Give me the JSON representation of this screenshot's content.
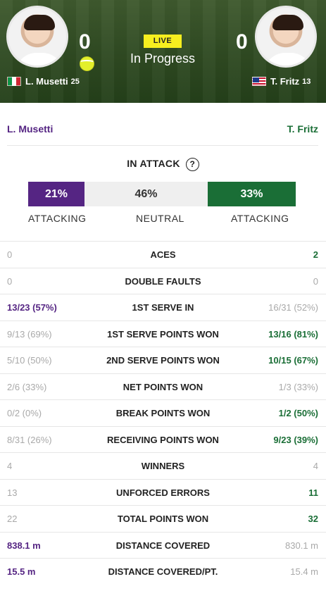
{
  "header": {
    "left_player": {
      "score": "0",
      "name": "L. Musetti",
      "seed": "25"
    },
    "right_player": {
      "score": "0",
      "name": "T. Fritz",
      "seed": "13"
    },
    "live_label": "LIVE",
    "status": "In Progress"
  },
  "names_row": {
    "left": "L. Musetti",
    "right": "T. Fritz"
  },
  "attack": {
    "title": "IN ATTACK",
    "help": "?",
    "left_pct": "21%",
    "neutral_pct": "46%",
    "right_pct": "33%",
    "left_label": "ATTACKING",
    "neutral_label": "NEUTRAL",
    "right_label": "ATTACKING"
  },
  "stats": [
    {
      "label": "ACES",
      "left": "0",
      "right": "2",
      "leader": "right"
    },
    {
      "label": "DOUBLE FAULTS",
      "left": "0",
      "right": "0",
      "leader": "none"
    },
    {
      "label": "1ST SERVE IN",
      "left": "13/23 (57%)",
      "right": "16/31 (52%)",
      "leader": "left"
    },
    {
      "label": "1ST SERVE POINTS WON",
      "left": "9/13 (69%)",
      "right": "13/16 (81%)",
      "leader": "right"
    },
    {
      "label": "2ND SERVE POINTS WON",
      "left": "5/10 (50%)",
      "right": "10/15 (67%)",
      "leader": "right"
    },
    {
      "label": "NET POINTS WON",
      "left": "2/6 (33%)",
      "right": "1/3 (33%)",
      "leader": "none"
    },
    {
      "label": "BREAK POINTS WON",
      "left": "0/2 (0%)",
      "right": "1/2 (50%)",
      "leader": "right"
    },
    {
      "label": "RECEIVING POINTS WON",
      "left": "8/31 (26%)",
      "right": "9/23 (39%)",
      "leader": "right"
    },
    {
      "label": "WINNERS",
      "left": "4",
      "right": "4",
      "leader": "none"
    },
    {
      "label": "UNFORCED ERRORS",
      "left": "13",
      "right": "11",
      "leader": "right"
    },
    {
      "label": "TOTAL POINTS WON",
      "left": "22",
      "right": "32",
      "leader": "right"
    },
    {
      "label": "DISTANCE COVERED",
      "left": "838.1 m",
      "right": "830.1 m",
      "leader": "left"
    },
    {
      "label": "DISTANCE COVERED/PT.",
      "left": "15.5 m",
      "right": "15.4 m",
      "leader": "left"
    }
  ],
  "colors": {
    "left_player": "#552583",
    "right_player": "#1a6e36",
    "live_badge": "#f6ef1f",
    "muted": "#a9a9a9"
  },
  "icons": [
    "italy-flag-icon",
    "usa-flag-icon",
    "tennis-ball-icon",
    "help-circle-icon"
  ]
}
